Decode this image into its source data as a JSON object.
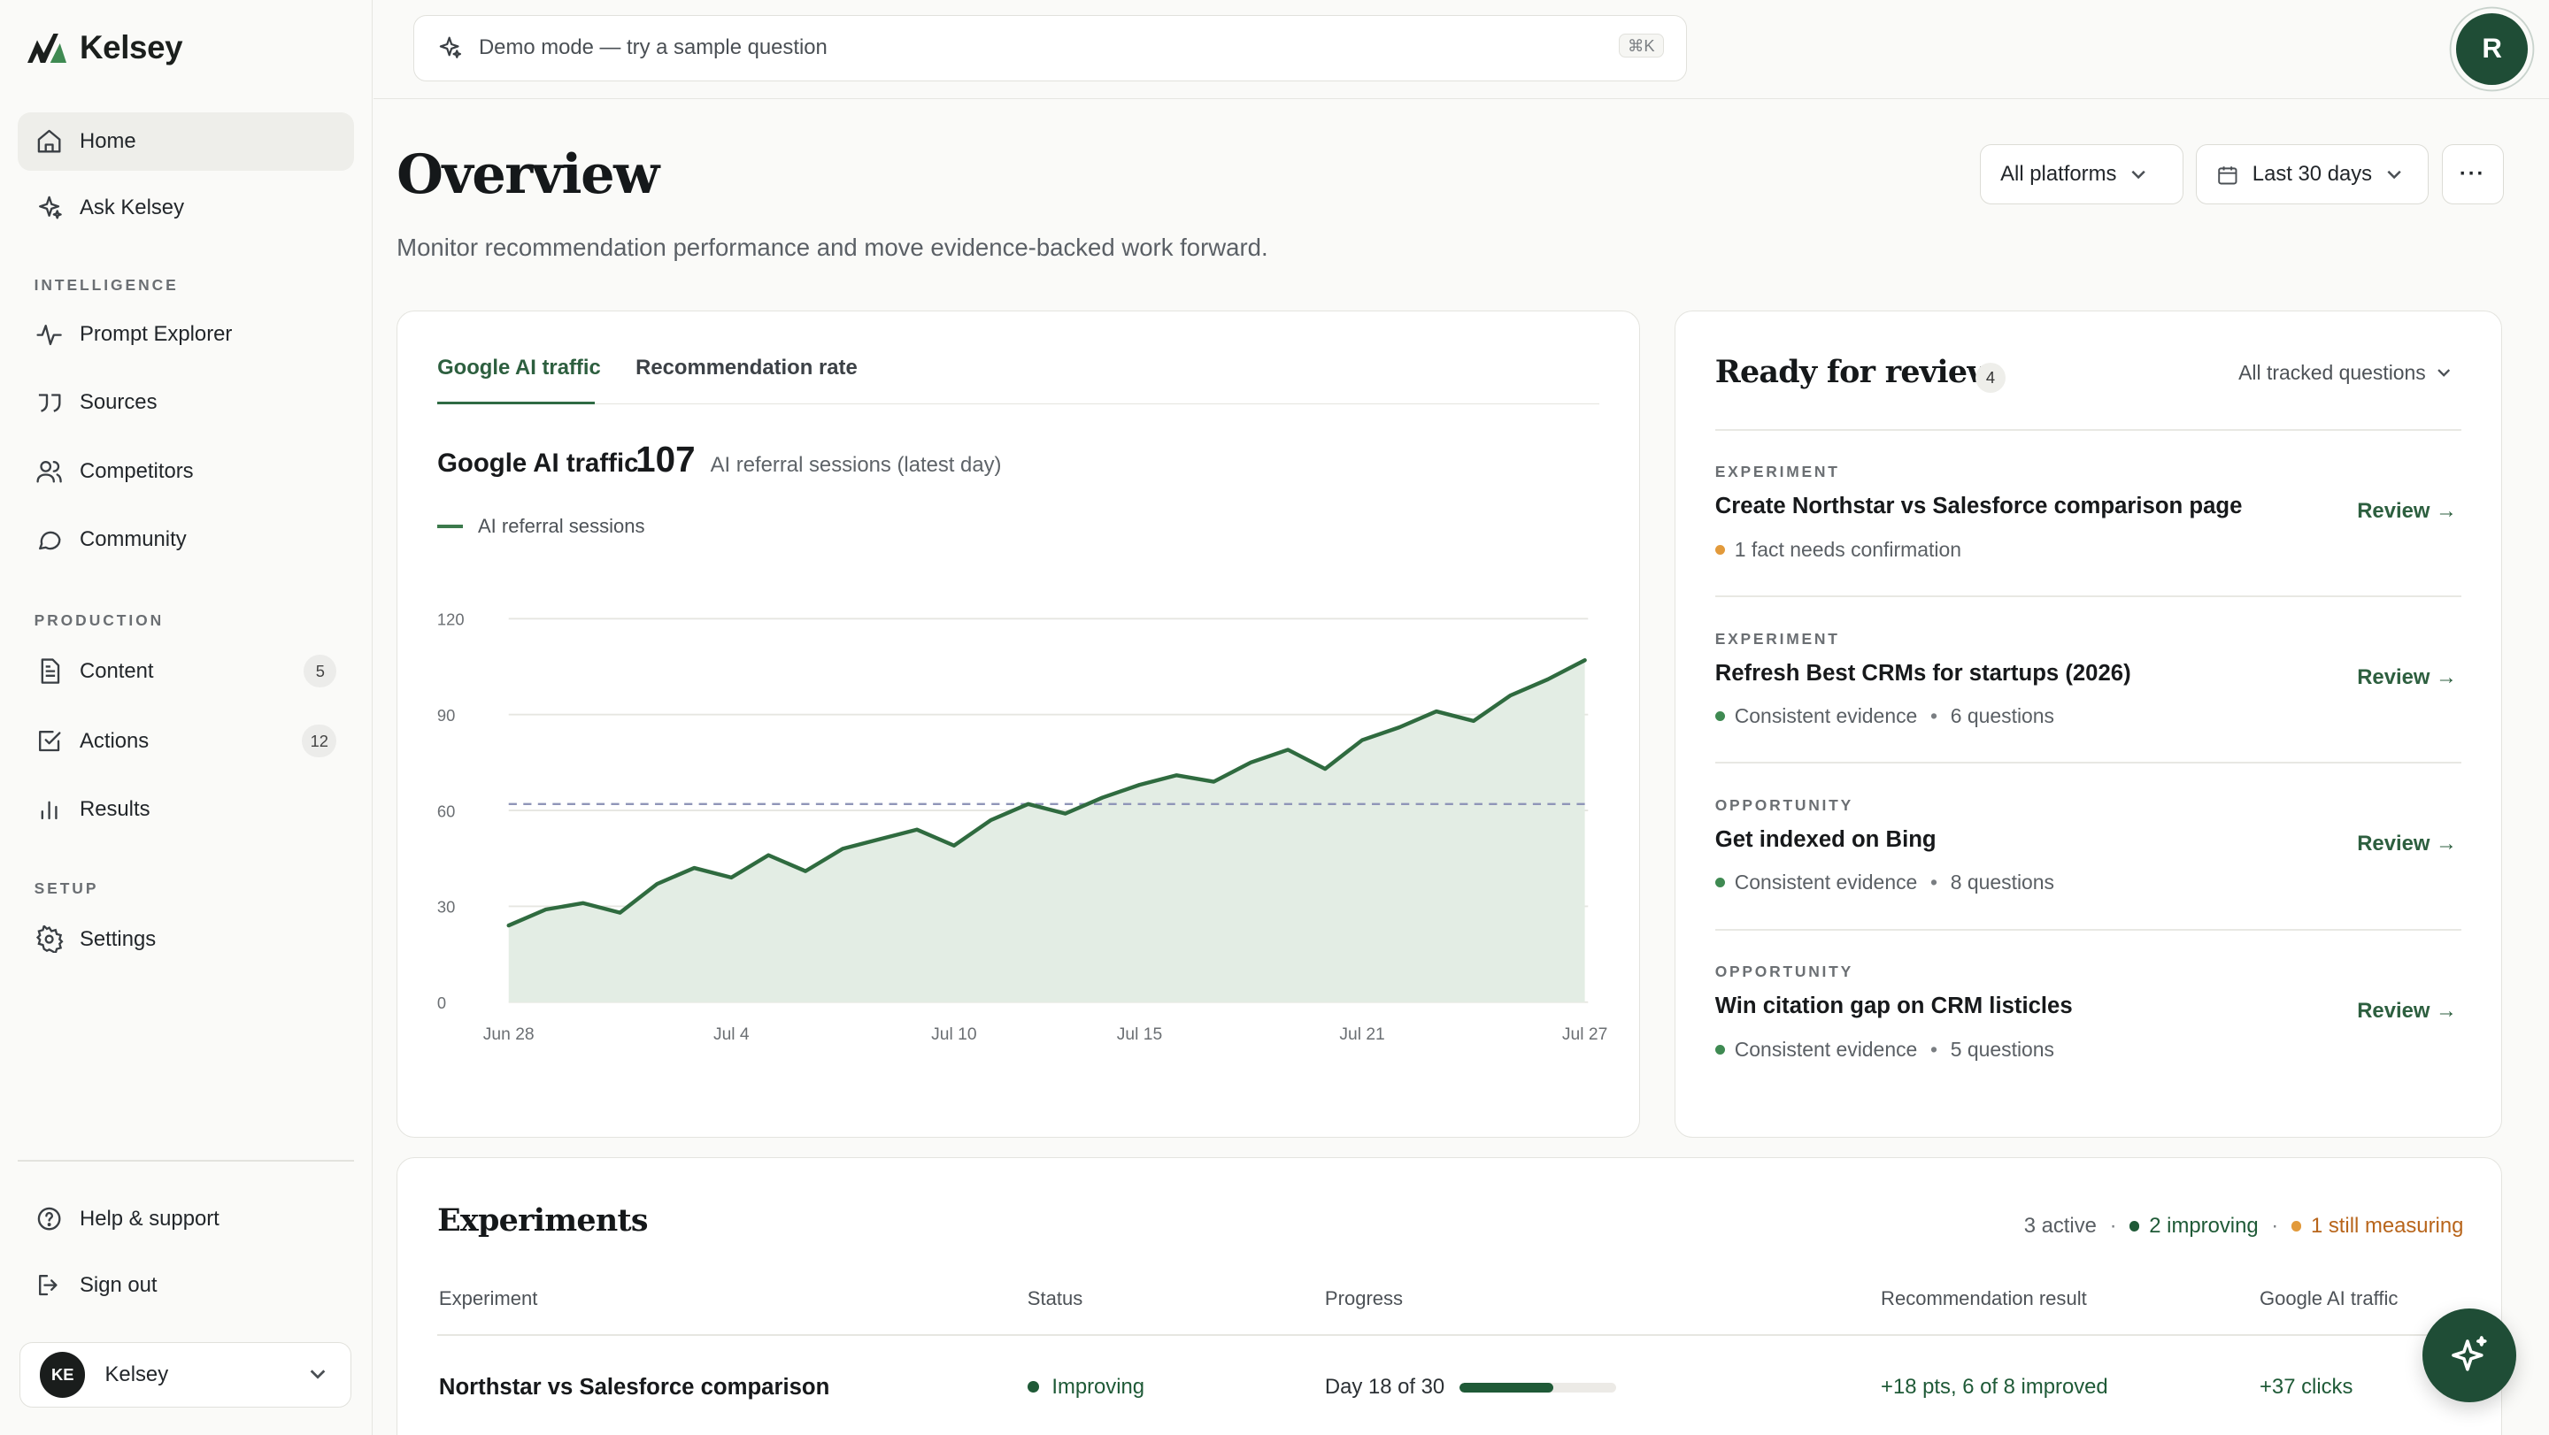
{
  "brand": {
    "name": "Kelsey"
  },
  "nav": {
    "home": "Home",
    "ask": "Ask Kelsey",
    "section_intelligence": "INTELLIGENCE",
    "prompt_explorer": "Prompt Explorer",
    "sources": "Sources",
    "competitors": "Competitors",
    "community": "Community",
    "section_production": "PRODUCTION",
    "content": "Content",
    "content_badge": "5",
    "actions": "Actions",
    "actions_badge": "12",
    "results": "Results",
    "section_setup": "SETUP",
    "settings": "Settings",
    "help": "Help & support",
    "signout": "Sign out"
  },
  "user": {
    "initials": "KE",
    "name": "Kelsey"
  },
  "topbar": {
    "search_placeholder": "Demo mode — try a sample question",
    "shortcut": "⌘K",
    "avatar_initial": "R"
  },
  "header": {
    "title": "Overview",
    "subtitle": "Monitor recommendation performance and move evidence-backed work forward.",
    "platform_select": "All platforms",
    "range_select": "Last 30 days",
    "more": "···"
  },
  "traffic": {
    "tab_traffic": "Google AI traffic",
    "tab_rate": "Recommendation rate",
    "metric_label": "Google AI traffic",
    "metric_value": "107",
    "metric_note": "AI referral sessions (latest day)",
    "legend": "AI referral sessions"
  },
  "chart_data": {
    "type": "area",
    "series": [
      {
        "name": "AI referral sessions",
        "values": [
          24,
          29,
          31,
          28,
          37,
          42,
          39,
          46,
          41,
          48,
          51,
          54,
          49,
          57,
          62,
          59,
          64,
          68,
          71,
          69,
          75,
          79,
          73,
          82,
          86,
          91,
          88,
          96,
          101,
          107
        ]
      }
    ],
    "x_tick_labels": [
      "Jun 28",
      "Jul 4",
      "Jul 10",
      "Jul 15",
      "Jul 21",
      "Jul 27"
    ],
    "x_tick_index": [
      0,
      6,
      12,
      17,
      23,
      29
    ],
    "y_ticks": [
      0,
      30,
      60,
      90,
      120
    ],
    "ylim": [
      0,
      120
    ],
    "reference_line": 62,
    "grid": true,
    "colors": {
      "line": "#2f6b3f",
      "fill": "#e3ede4",
      "reference": "#8f95b8"
    }
  },
  "review": {
    "title": "Ready for review",
    "count": "4",
    "filter": "All tracked questions",
    "items": [
      {
        "kind": "EXPERIMENT",
        "title": "Create Northstar vs Salesforce comparison page",
        "meta": "1 fact needs confirmation",
        "meta2": "",
        "dot_color": "#e29a3b",
        "link": "Review →"
      },
      {
        "kind": "EXPERIMENT",
        "title": "Refresh Best CRMs for startups (2026)",
        "meta": "Consistent evidence",
        "meta2": "6 questions",
        "dot_color": "#3f8a52",
        "link": "Review →"
      },
      {
        "kind": "OPPORTUNITY",
        "title": "Get indexed on Bing",
        "meta": "Consistent evidence",
        "meta2": "8 questions",
        "dot_color": "#3f8a52",
        "link": "Review →"
      },
      {
        "kind": "OPPORTUNITY",
        "title": "Win citation gap on CRM listicles",
        "meta": "Consistent evidence",
        "meta2": "5 questions",
        "dot_color": "#3f8a52",
        "link": "Review →"
      }
    ]
  },
  "experiments": {
    "title": "Experiments",
    "stat_active": "3 active",
    "stat_improving": "2 improving",
    "stat_measuring": "1 still measuring",
    "columns": [
      "Experiment",
      "Status",
      "Progress",
      "Recommendation result",
      "Google AI traffic"
    ],
    "rows": [
      {
        "name": "Northstar vs Salesforce comparison",
        "status": "Improving",
        "progress_text": "Day 18 of 30",
        "progress": 0.6,
        "result": "+18 pts, 6 of 8 improved",
        "traffic": "+37 clicks"
      }
    ]
  }
}
